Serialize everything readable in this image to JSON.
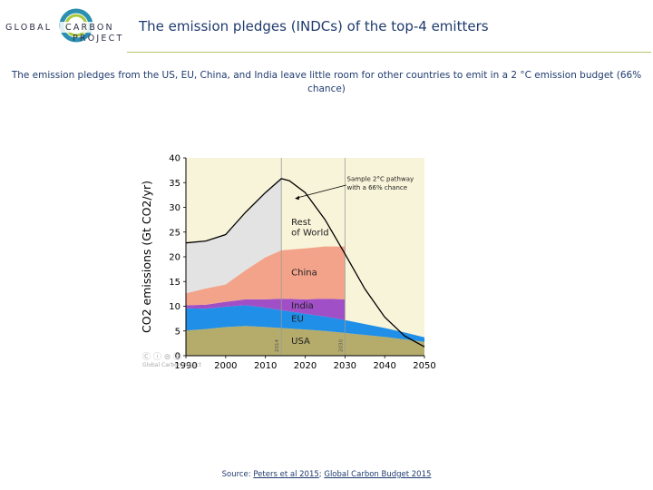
{
  "header": {
    "logo_line1_left": "GLOBAL",
    "logo_line1_right": "CARBON",
    "logo_line2": "PROJECT",
    "title": "The emission pledges (INDCs) of the top-4 emitters"
  },
  "subtitle": "The emission pledges from the US, EU, China, and India leave little room for other countries to emit in a 2 °C emission budget (66% chance)",
  "footer": {
    "source_prefix": "Source: ",
    "link1": "Peters et al 2015",
    "separator": "; ",
    "link2": "Global Carbon Budget 2015"
  },
  "credit": {
    "cc_icons": "Ⓒ ⓘ ⊜ Ⓢ",
    "org": "Global Carbon Project"
  },
  "colors": {
    "usa": "#b5ac6c",
    "eu": "#1f8fe8",
    "india": "#a04fc7",
    "china": "#f3a38a",
    "rest": "#e3e3e3",
    "background": "#f8f4d9",
    "accent": "#b6c76a"
  },
  "chart_data": {
    "type": "area",
    "ylabel": "CO2 emissions (Gt CO2/yr)",
    "xlim": [
      1990,
      2050
    ],
    "ylim": [
      0,
      40
    ],
    "xticks": [
      1990,
      2000,
      2010,
      2020,
      2030,
      2040,
      2050
    ],
    "yticks": [
      0,
      5,
      10,
      15,
      20,
      25,
      30,
      35,
      40
    ],
    "series": [
      {
        "name": "USA",
        "x": [
          1990,
          1995,
          2000,
          2005,
          2010,
          2014,
          2020,
          2025,
          2030,
          2035,
          2040,
          2045,
          2050
        ],
        "values": [
          5.1,
          5.4,
          5.8,
          6.0,
          5.8,
          5.6,
          5.3,
          5.0,
          4.6,
          4.2,
          3.8,
          3.3,
          2.8
        ]
      },
      {
        "name": "EU",
        "x": [
          1990,
          1995,
          2000,
          2005,
          2010,
          2014,
          2020,
          2025,
          2030,
          2035,
          2040,
          2045,
          2050
        ],
        "values": [
          4.5,
          4.1,
          4.1,
          4.2,
          3.9,
          3.6,
          3.2,
          2.9,
          2.6,
          2.2,
          1.8,
          1.4,
          0.9
        ]
      },
      {
        "name": "India",
        "x": [
          1990,
          1995,
          2000,
          2005,
          2010,
          2014,
          2020,
          2025,
          2030
        ],
        "values": [
          0.6,
          0.8,
          1.0,
          1.2,
          1.7,
          2.3,
          2.9,
          3.6,
          4.2
        ]
      },
      {
        "name": "China",
        "x": [
          1990,
          1995,
          2000,
          2005,
          2010,
          2014,
          2020,
          2025,
          2030
        ],
        "values": [
          2.4,
          3.3,
          3.5,
          5.9,
          8.5,
          9.8,
          10.3,
          10.6,
          10.7
        ]
      },
      {
        "name": "Rest of World",
        "x": [
          1990,
          1995,
          2000,
          2005,
          2010,
          2014
        ],
        "values": [
          10.2,
          9.6,
          10.1,
          11.3,
          13.1,
          14.5
        ]
      }
    ],
    "pathway": {
      "name": "Sample 2°C pathway with a 66% chance",
      "x": [
        1990,
        1995,
        2000,
        2005,
        2010,
        2014,
        2016,
        2020,
        2025,
        2030,
        2035,
        2040,
        2045,
        2050
      ],
      "values": [
        22.8,
        23.2,
        24.5,
        29.0,
        33.0,
        35.8,
        35.4,
        33.0,
        27.5,
        20.6,
        13.5,
        7.8,
        4.0,
        1.8
      ]
    },
    "vlines": [
      {
        "x": 2014,
        "label": "2014"
      },
      {
        "x": 2030,
        "label": "2030"
      }
    ],
    "labels": [
      {
        "text": "Rest",
        "x": 2016.5,
        "y": 26.4
      },
      {
        "text": "of World",
        "x": 2016.5,
        "y": 24.3
      },
      {
        "text": "China",
        "x": 2016.5,
        "y": 16.2
      },
      {
        "text": "India",
        "x": 2016.5,
        "y": 9.5
      },
      {
        "text": "EU",
        "x": 2016.5,
        "y": 6.9
      },
      {
        "text": "USA",
        "x": 2016.5,
        "y": 2.4
      },
      {
        "text": "Sample 2°C pathway",
        "x": 2030.5,
        "y": 35.3
      },
      {
        "text": "with a 66% chance",
        "x": 2030.5,
        "y": 33.6
      }
    ]
  }
}
